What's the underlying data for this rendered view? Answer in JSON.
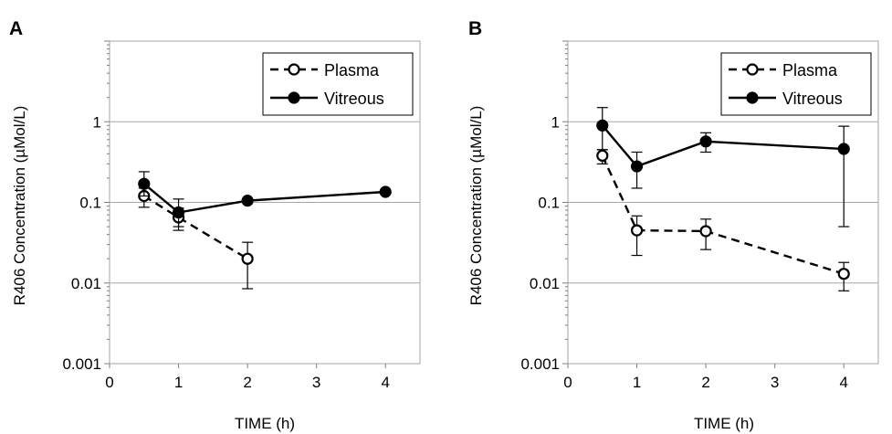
{
  "chart_data": [
    {
      "panel": "A",
      "type": "line",
      "xlabel": "TIME (h)",
      "ylabel": "R406 Concentration (µMol/L)",
      "xlim": [
        0,
        4.5
      ],
      "ylim": [
        0.001,
        10
      ],
      "yscale": "log",
      "xticks": [
        "0",
        "1",
        "2",
        "3",
        "4"
      ],
      "yticks": [
        "0.001",
        "0.01",
        "0.1",
        "1"
      ],
      "grid": "horizontal",
      "legend_position": "top-right",
      "series": [
        {
          "name": "Plasma",
          "style": "dashed",
          "marker": "open-circle",
          "x": [
            0.5,
            1,
            2
          ],
          "y": [
            0.12,
            0.065,
            0.02
          ],
          "err_low": [
            0.087,
            0.045,
            0.0085
          ],
          "err_high": [
            0.15,
            0.085,
            0.032
          ]
        },
        {
          "name": "Vitreous",
          "style": "solid",
          "marker": "filled-circle",
          "x": [
            0.5,
            1,
            2,
            4
          ],
          "y": [
            0.17,
            0.075,
            0.105,
            0.135
          ],
          "err_low": [
            0.12,
            0.05,
            null,
            null
          ],
          "err_high": [
            0.24,
            0.11,
            null,
            null
          ]
        }
      ]
    },
    {
      "panel": "B",
      "type": "line",
      "xlabel": "TIME (h)",
      "ylabel": "R406 Concentration (µMol/L)",
      "xlim": [
        0,
        4.5
      ],
      "ylim": [
        0.001,
        10
      ],
      "yscale": "log",
      "xticks": [
        "0",
        "1",
        "2",
        "3",
        "4"
      ],
      "yticks": [
        "0.001",
        "0.01",
        "0.1",
        "1"
      ],
      "grid": "horizontal",
      "legend_position": "top-right",
      "series": [
        {
          "name": "Plasma",
          "style": "dashed",
          "marker": "open-circle",
          "x": [
            0.5,
            1,
            2,
            4
          ],
          "y": [
            0.38,
            0.045,
            0.044,
            0.013
          ],
          "err_low": [
            0.3,
            0.022,
            0.026,
            0.008
          ],
          "err_high": [
            0.45,
            0.068,
            0.062,
            0.018
          ]
        },
        {
          "name": "Vitreous",
          "style": "solid",
          "marker": "filled-circle",
          "x": [
            0.5,
            1,
            2,
            4
          ],
          "y": [
            0.9,
            0.28,
            0.57,
            0.46
          ],
          "err_low": [
            0.45,
            0.15,
            0.42,
            0.05
          ],
          "err_high": [
            1.5,
            0.42,
            0.73,
            0.88
          ]
        }
      ]
    }
  ]
}
